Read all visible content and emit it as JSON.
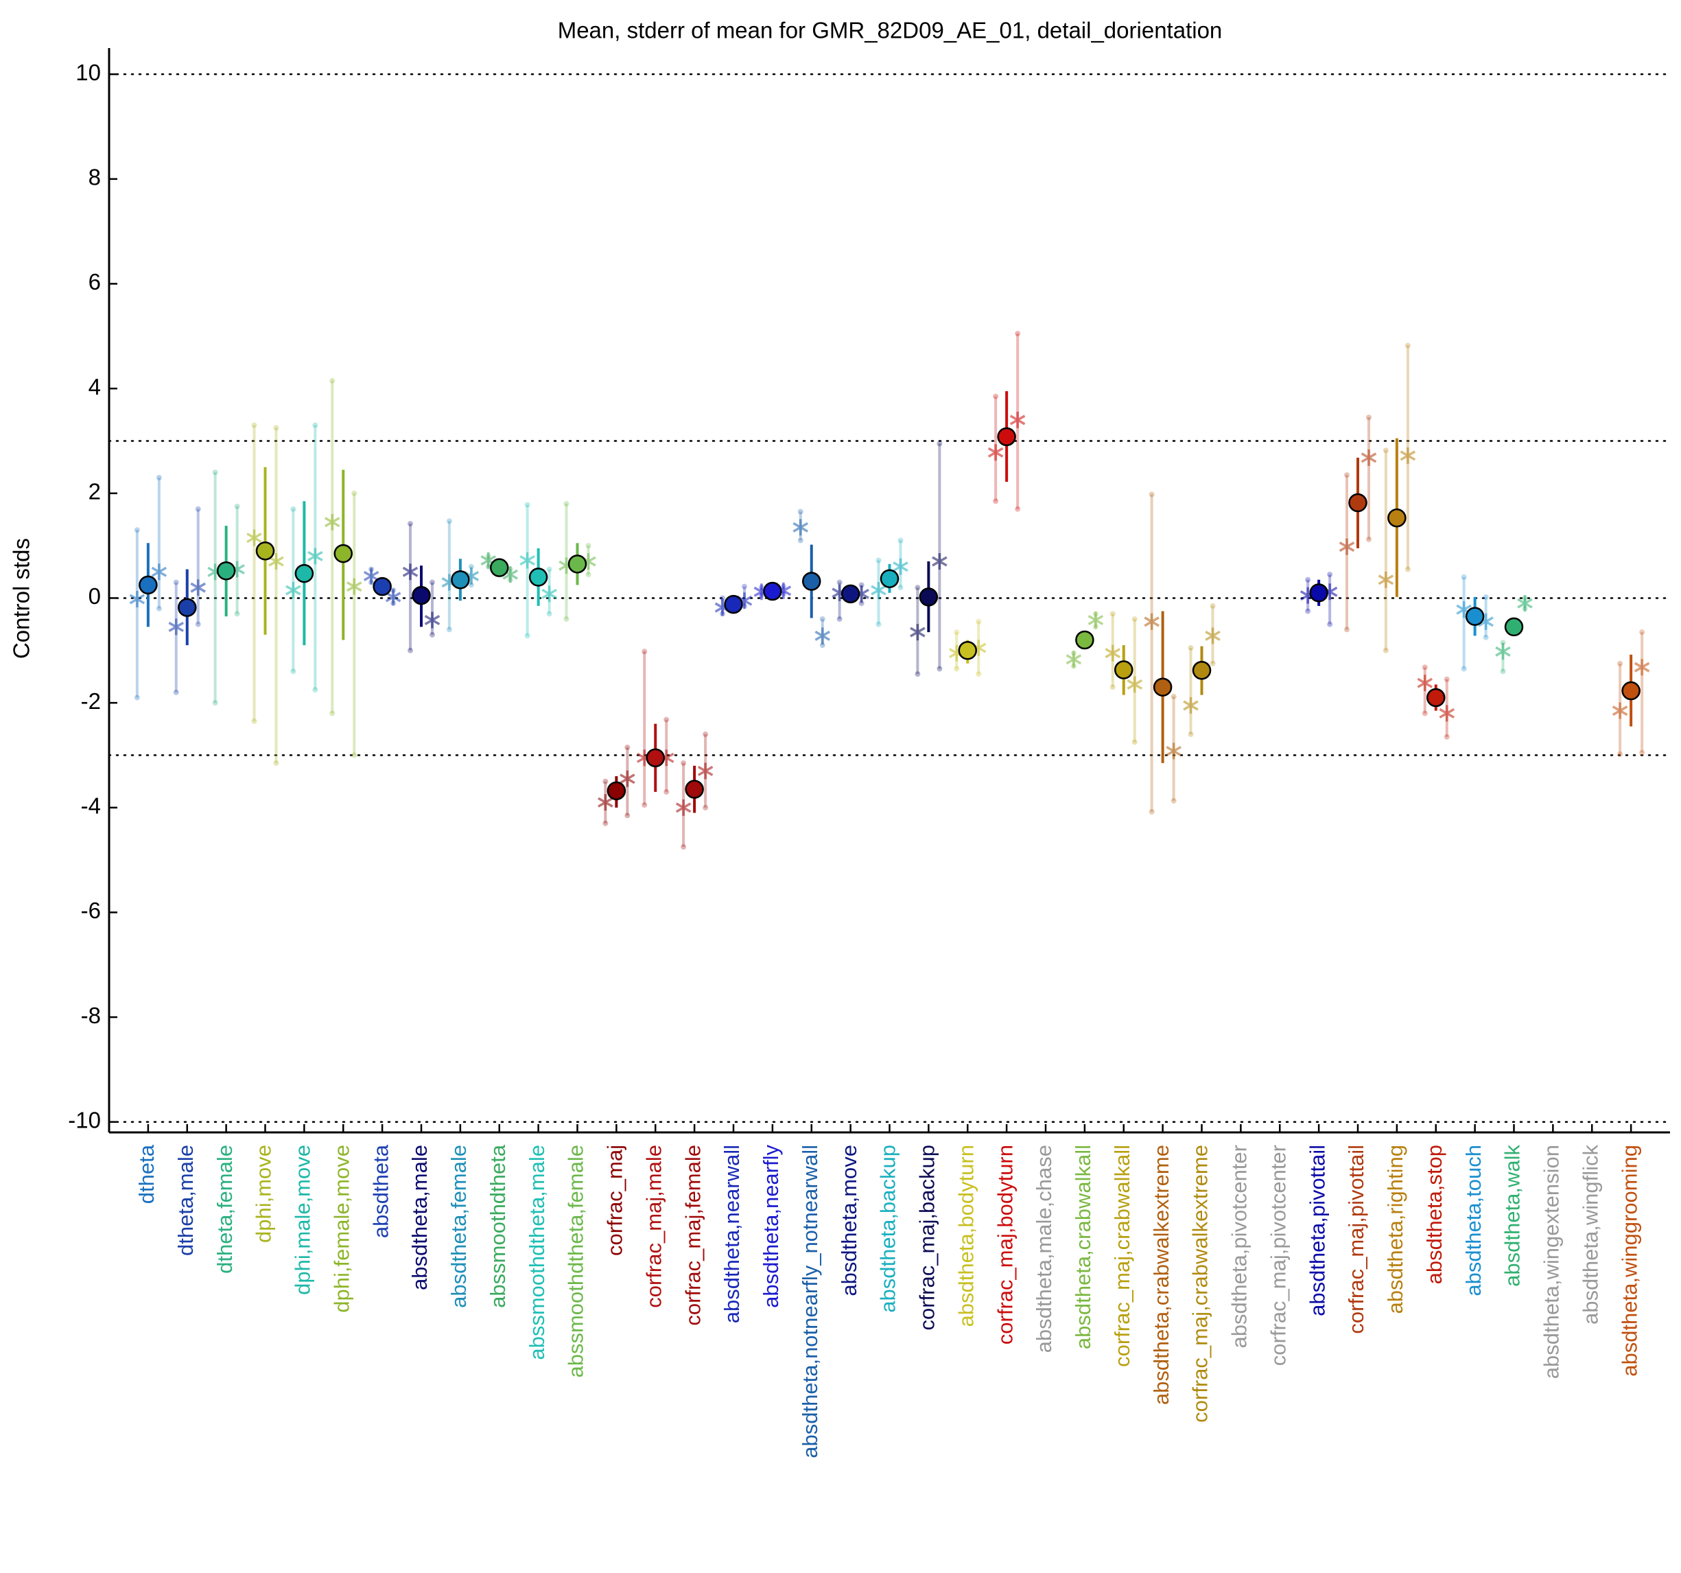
{
  "chart_data": {
    "type": "errorbar",
    "title": "Mean, stderr of mean for GMR_82D09_AE_01, detail_dorientation",
    "y_label": "Control stds",
    "categories": [
      "dtheta",
      "dtheta,male",
      "dtheta,female",
      "dphi,move",
      "dphi,male,move",
      "dphi,female,move",
      "absdtheta",
      "absdtheta,male",
      "absdtheta,female",
      "abssmoothdtheta",
      "abssmoothdtheta,male",
      "abssmoothdtheta,female",
      "corfrac_maj",
      "corfrac_maj,male",
      "corfrac_maj,female",
      "absdtheta,nearwall",
      "absdtheta,nearfly",
      "absdtheta,notnearfly_notnearwall",
      "absdtheta,move",
      "absdtheta,backup",
      "corfrac_maj,backup",
      "absdtheta,bodyturn",
      "corfrac_maj,bodyturn",
      "absdtheta,male,chase",
      "absdtheta,crabwalkall",
      "corfrac_maj,crabwalkall",
      "absdtheta,crabwalkextreme",
      "corfrac_maj,crabwalkextreme",
      "absdtheta,pivotcenter",
      "corfrac_maj,pivotcenter",
      "absdtheta,pivottail",
      "corfrac_maj,pivottail",
      "absdtheta,righting",
      "absdtheta,stop",
      "absdtheta,touch",
      "absdtheta,walk",
      "absdtheta,wingextension",
      "absdtheta,wingflick",
      "absdtheta,winggrooming"
    ],
    "category_colors": [
      "#1a6fbf",
      "#1a3fa8",
      "#2ab07f",
      "#a8b41e",
      "#1db8a8",
      "#8db52a",
      "#1b3fb0",
      "#0a0a6e",
      "#1e8fb8",
      "#3aaa5e",
      "#1fbfb5",
      "#6bb84a",
      "#8b0000",
      "#b01010",
      "#a00a0a",
      "#1828b8",
      "#1a1ad0",
      "#1a5fa8",
      "#0d1680",
      "#1aafbf",
      "#0b0b55",
      "#c8c020",
      "#cc0c0c",
      "#999999",
      "#7ab840",
      "#b8a010",
      "#b06010",
      "#b08a10",
      "#999999",
      "#999999",
      "#0a0aa8",
      "#b03a10",
      "#b88010",
      "#c01a0a",
      "#1a8fd0",
      "#30b070",
      "#999999",
      "#999999",
      "#c05010"
    ],
    "values": [
      0.25,
      -0.18,
      0.52,
      0.9,
      0.47,
      0.85,
      0.22,
      0.05,
      0.35,
      0.58,
      0.4,
      0.65,
      -3.68,
      -3.05,
      -3.65,
      -0.12,
      0.13,
      0.32,
      0.08,
      0.37,
      0.02,
      -1.0,
      3.08,
      null,
      -0.8,
      -1.37,
      -1.7,
      -1.38,
      null,
      null,
      0.1,
      1.82,
      1.53,
      -1.9,
      -0.35,
      -0.55,
      null,
      null,
      -1.77
    ],
    "stderr_low": [
      -0.55,
      -0.9,
      -0.35,
      -0.7,
      -0.9,
      -0.8,
      0.05,
      -0.55,
      -0.05,
      0.5,
      -0.15,
      0.25,
      -4.0,
      -3.7,
      -4.1,
      -0.2,
      0.05,
      -0.38,
      0.0,
      0.1,
      -0.65,
      -1.25,
      2.22,
      null,
      -0.85,
      -1.85,
      -3.15,
      -1.85,
      null,
      null,
      -0.15,
      0.95,
      0.02,
      -2.15,
      -0.72,
      -0.6,
      null,
      null,
      -2.45
    ],
    "stderr_high": [
      1.05,
      0.55,
      1.38,
      2.5,
      1.85,
      2.45,
      0.4,
      0.62,
      0.75,
      0.66,
      0.95,
      1.05,
      -3.4,
      -2.4,
      -3.2,
      -0.05,
      0.22,
      1.02,
      0.18,
      0.65,
      0.7,
      -0.8,
      3.95,
      null,
      -0.75,
      -0.9,
      -0.25,
      -0.92,
      null,
      null,
      0.35,
      2.68,
      3.05,
      -1.65,
      0.02,
      -0.5,
      null,
      null,
      -1.08
    ],
    "left_values": [
      -0.02,
      -0.55,
      0.5,
      1.15,
      0.15,
      1.45,
      0.42,
      0.5,
      0.3,
      0.72,
      0.72,
      0.62,
      -3.9,
      -3.05,
      -4.0,
      -0.18,
      0.12,
      1.35,
      0.1,
      0.15,
      -0.65,
      -1.05,
      2.78,
      null,
      -1.17,
      -1.05,
      -0.45,
      -2.05,
      null,
      null,
      0.05,
      0.98,
      0.35,
      -1.62,
      -0.22,
      -1.02,
      null,
      null,
      -2.15
    ],
    "left_low": [
      -1.9,
      -1.8,
      -2.0,
      -2.35,
      -1.4,
      -2.2,
      0.3,
      -1.0,
      -0.6,
      0.6,
      -0.72,
      -0.4,
      -4.3,
      -3.95,
      -4.75,
      -0.3,
      0.05,
      1.1,
      -0.4,
      -0.5,
      -1.45,
      -1.35,
      1.85,
      null,
      -1.3,
      -1.7,
      -4.08,
      -2.6,
      null,
      null,
      -0.25,
      -0.6,
      -1.0,
      -2.2,
      -1.35,
      -1.4,
      null,
      null,
      -2.98
    ],
    "left_high": [
      1.3,
      0.3,
      2.4,
      3.3,
      1.7,
      4.15,
      0.55,
      1.42,
      1.47,
      0.8,
      1.78,
      1.8,
      -3.5,
      -1.02,
      -3.15,
      0.0,
      0.2,
      1.65,
      0.3,
      0.72,
      0.2,
      -0.65,
      3.85,
      null,
      -1.05,
      -0.3,
      1.98,
      -0.95,
      null,
      null,
      0.35,
      2.35,
      2.82,
      -1.32,
      0.4,
      -0.85,
      null,
      null,
      -1.25
    ],
    "right_values": [
      0.5,
      0.2,
      0.55,
      0.7,
      0.8,
      0.22,
      0.02,
      -0.42,
      0.42,
      0.45,
      0.08,
      0.7,
      -3.45,
      -3.05,
      -3.3,
      -0.05,
      0.14,
      -0.72,
      0.08,
      0.6,
      0.7,
      -0.95,
      3.4,
      null,
      -0.42,
      -1.65,
      -2.92,
      -0.72,
      null,
      null,
      0.12,
      2.68,
      2.72,
      -2.2,
      -0.45,
      -0.1,
      null,
      null,
      -1.32
    ],
    "right_low": [
      -0.2,
      -0.5,
      -0.3,
      -3.15,
      -1.75,
      -3.0,
      -0.1,
      -0.7,
      0.25,
      0.35,
      -0.3,
      0.45,
      -4.15,
      -3.7,
      -4.0,
      -0.15,
      0.08,
      -0.9,
      -0.1,
      0.2,
      -1.35,
      -1.45,
      1.7,
      null,
      -0.55,
      -2.75,
      -3.87,
      -1.25,
      null,
      null,
      -0.5,
      1.12,
      0.55,
      -2.65,
      -0.75,
      -0.2,
      null,
      null,
      -2.95
    ],
    "right_high": [
      2.3,
      1.7,
      1.75,
      3.25,
      3.3,
      2.0,
      0.15,
      0.3,
      0.6,
      0.55,
      0.55,
      1.0,
      -2.85,
      -2.32,
      -2.6,
      0.22,
      0.22,
      -0.4,
      0.25,
      1.1,
      2.95,
      -0.45,
      5.05,
      null,
      -0.3,
      -0.4,
      -1.88,
      -0.15,
      null,
      null,
      0.45,
      3.45,
      4.82,
      -1.55,
      0.02,
      0.0,
      null,
      null,
      -0.65
    ],
    "xlim": [
      0,
      40
    ],
    "ylim": [
      -10.2,
      10.5
    ],
    "yticks": [
      -10,
      -8,
      -6,
      -4,
      -2,
      0,
      2,
      4,
      6,
      8,
      10
    ],
    "hlines": [
      -10,
      -3,
      0,
      3,
      10
    ]
  }
}
